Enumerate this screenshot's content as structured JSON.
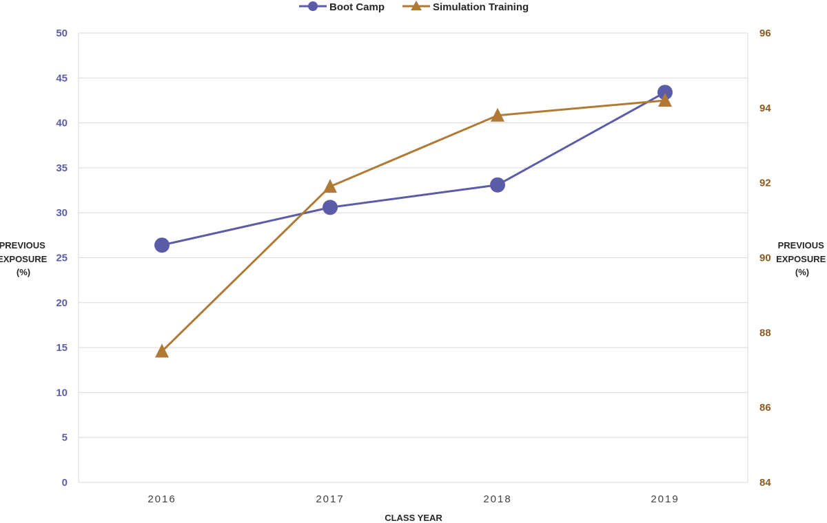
{
  "chart_data": {
    "type": "line",
    "categories": [
      "2016",
      "2017",
      "2018",
      "2019"
    ],
    "xlabel": "CLASS YEAR",
    "ylabel_left": [
      "PREVIOUS",
      "EXPOSURE",
      "(%)"
    ],
    "ylabel_right": [
      "PREVIOUS",
      "EXPOSURE",
      "(%)"
    ],
    "left_axis": {
      "min": 0,
      "max": 50,
      "step": 5,
      "ticks": [
        "0",
        "5",
        "10",
        "15",
        "20",
        "25",
        "30",
        "35",
        "40",
        "45",
        "50"
      ],
      "color": "#5b5ca8"
    },
    "right_axis": {
      "min": 84,
      "max": 96,
      "step": 2,
      "ticks": [
        "84",
        "86",
        "88",
        "90",
        "92",
        "94",
        "96"
      ],
      "color": "#8b5a1f"
    },
    "grid": true,
    "legend_position": "top-center",
    "series": [
      {
        "name": "Boot Camp",
        "axis": "left",
        "marker": "circle",
        "color": "#5b5ca8",
        "values": [
          26.4,
          30.6,
          33.1,
          43.4
        ]
      },
      {
        "name": "Simulation Training",
        "axis": "right",
        "marker": "triangle",
        "color": "#b07a35",
        "values": [
          87.5,
          91.9,
          93.8,
          94.2
        ]
      }
    ]
  }
}
